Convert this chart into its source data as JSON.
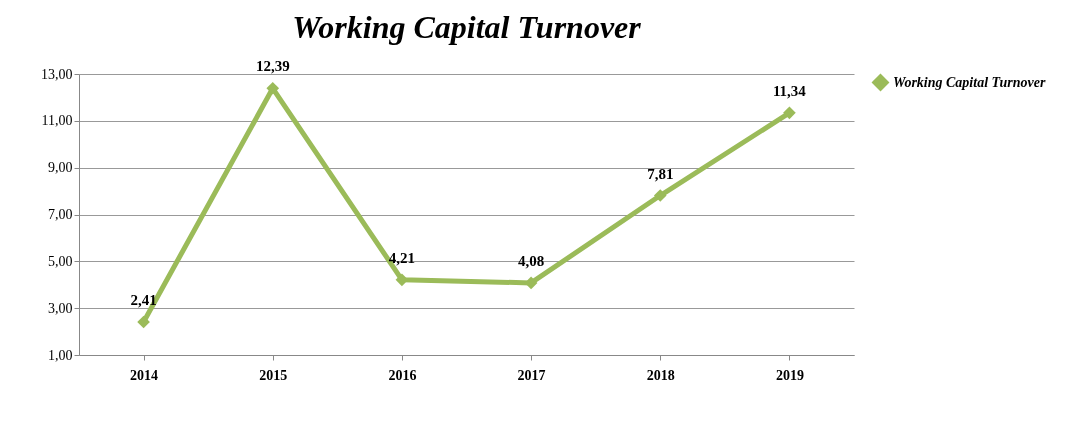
{
  "chart_data": {
    "type": "line",
    "title": "Working Capital Turnover",
    "categories": [
      "2014",
      "2015",
      "2016",
      "2017",
      "2018",
      "2019"
    ],
    "series": [
      {
        "name": "Working Capital Turnover",
        "color": "#9bbb59",
        "values": [
          2.41,
          12.39,
          4.21,
          4.08,
          7.81,
          11.34
        ],
        "value_labels": [
          "2,41",
          "12,39",
          "4,21",
          "4,08",
          "7,81",
          "11,34"
        ]
      }
    ],
    "ylim": [
      1,
      13
    ],
    "yticks": [
      {
        "value": 1,
        "label": "1,00"
      },
      {
        "value": 3,
        "label": "3,00"
      },
      {
        "value": 5,
        "label": "5,00"
      },
      {
        "value": 7,
        "label": "7,00"
      },
      {
        "value": 9,
        "label": "9,00"
      },
      {
        "value": 11,
        "label": "11,00"
      },
      {
        "value": 13,
        "label": "13,00"
      }
    ],
    "grid": "y",
    "legend": "right",
    "marker": "diamond",
    "line_style": "solid"
  }
}
